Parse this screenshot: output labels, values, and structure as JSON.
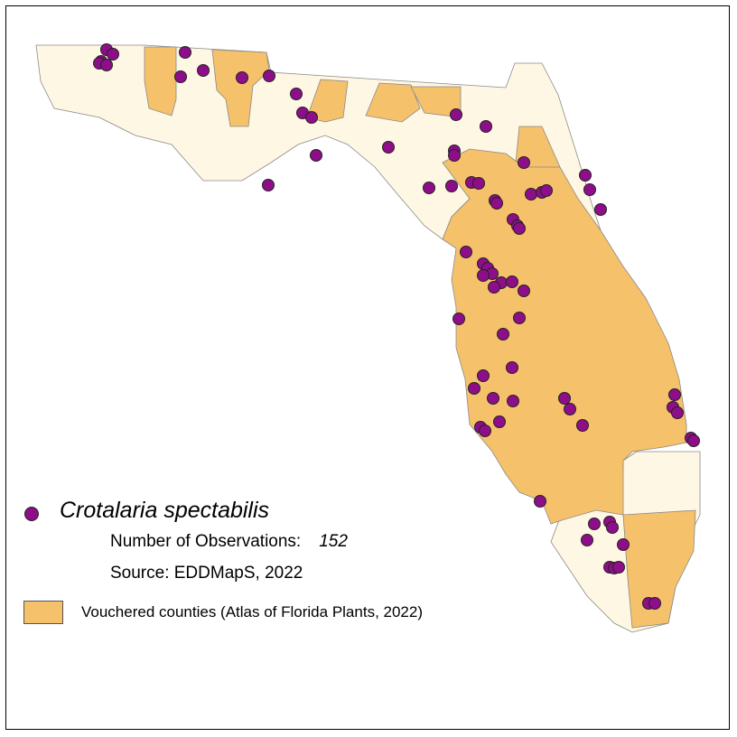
{
  "colors": {
    "vouchered_fill": "#F5C16B",
    "unvouchered_fill": "#FEF7E3",
    "county_border": "#8a8a8a",
    "observation_dot": "#8E0E8A",
    "dot_border": "#222222"
  },
  "legend": {
    "species": "Crotalaria spectabilis",
    "observations_label": "Number of Observations:",
    "observations_count": "152",
    "source": "Source: EDDMapS, 2022",
    "vouchered_label": "Vouchered counties (Atlas of Florida Plants, 2022)"
  },
  "map_layers": [
    "county-boundaries",
    "vouchered-counties",
    "observation-points"
  ]
}
